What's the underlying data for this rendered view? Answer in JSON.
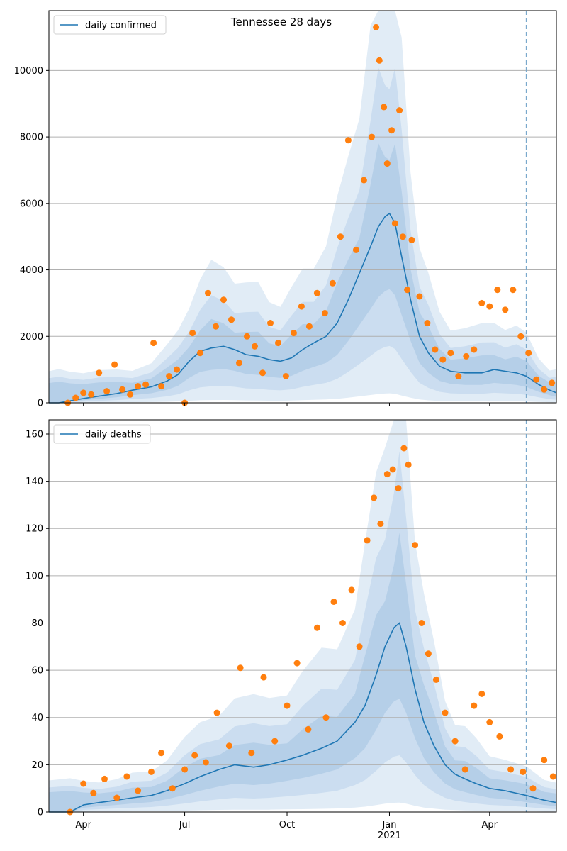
{
  "figure_title": "Tennessee 28 days",
  "colors": {
    "line": "#1f77b4",
    "points": "#ff7f0e",
    "band_outer": "#dce9f5",
    "band_mid": "#c7dbee",
    "band_inner": "#b2cde6",
    "grid": "#b0b0b0",
    "vline": "#7aa9cc"
  },
  "chart_data": [
    {
      "type": "line",
      "legend": [
        "daily confirmed"
      ],
      "legend_position": "top-left",
      "xlim": [
        "2020-03-01",
        "2021-05-31"
      ],
      "ylim": [
        0,
        11800
      ],
      "yticks": [
        0,
        2000,
        4000,
        6000,
        8000,
        10000
      ],
      "grid": "horizontal",
      "forecast_start": "2021-05-04",
      "series": [
        {
          "name": "daily confirmed",
          "kind": "line",
          "points": [
            [
              "2020-03-01",
              0
            ],
            [
              "2020-03-10",
              0
            ],
            [
              "2020-03-20",
              60
            ],
            [
              "2020-04-01",
              130
            ],
            [
              "2020-04-15",
              200
            ],
            [
              "2020-05-01",
              280
            ],
            [
              "2020-05-15",
              380
            ],
            [
              "2020-06-01",
              480
            ],
            [
              "2020-06-15",
              650
            ],
            [
              "2020-06-25",
              850
            ],
            [
              "2020-07-05",
              1250
            ],
            [
              "2020-07-15",
              1550
            ],
            [
              "2020-07-25",
              1650
            ],
            [
              "2020-08-05",
              1700
            ],
            [
              "2020-08-15",
              1600
            ],
            [
              "2020-08-25",
              1450
            ],
            [
              "2020-09-05",
              1400
            ],
            [
              "2020-09-15",
              1300
            ],
            [
              "2020-09-25",
              1250
            ],
            [
              "2020-10-05",
              1350
            ],
            [
              "2020-10-15",
              1600
            ],
            [
              "2020-10-25",
              1800
            ],
            [
              "2020-11-05",
              2000
            ],
            [
              "2020-11-15",
              2400
            ],
            [
              "2020-11-25",
              3100
            ],
            [
              "2020-12-05",
              3900
            ],
            [
              "2020-12-15",
              4700
            ],
            [
              "2020-12-22",
              5300
            ],
            [
              "2020-12-28",
              5600
            ],
            [
              "2021-01-01",
              5700
            ],
            [
              "2021-01-06",
              5400
            ],
            [
              "2021-01-12",
              4400
            ],
            [
              "2021-01-20",
              3100
            ],
            [
              "2021-01-28",
              2000
            ],
            [
              "2021-02-05",
              1500
            ],
            [
              "2021-02-15",
              1100
            ],
            [
              "2021-02-25",
              950
            ],
            [
              "2021-03-10",
              900
            ],
            [
              "2021-03-25",
              900
            ],
            [
              "2021-04-05",
              1000
            ],
            [
              "2021-04-15",
              950
            ],
            [
              "2021-04-25",
              900
            ],
            [
              "2021-05-04",
              800
            ],
            [
              "2021-05-15",
              550
            ],
            [
              "2021-05-25",
              380
            ],
            [
              "2021-05-31",
              300
            ]
          ]
        },
        {
          "name": "",
          "kind": "scatter",
          "points": [
            [
              "2020-03-18",
              0
            ],
            [
              "2020-03-25",
              150
            ],
            [
              "2020-04-01",
              300
            ],
            [
              "2020-04-08",
              250
            ],
            [
              "2020-04-15",
              900
            ],
            [
              "2020-04-22",
              350
            ],
            [
              "2020-04-29",
              1150
            ],
            [
              "2020-05-06",
              400
            ],
            [
              "2020-05-13",
              250
            ],
            [
              "2020-05-20",
              500
            ],
            [
              "2020-05-27",
              550
            ],
            [
              "2020-06-03",
              1800
            ],
            [
              "2020-06-10",
              500
            ],
            [
              "2020-06-17",
              800
            ],
            [
              "2020-06-24",
              1000
            ],
            [
              "2020-07-01",
              0
            ],
            [
              "2020-07-08",
              2100
            ],
            [
              "2020-07-15",
              1500
            ],
            [
              "2020-07-22",
              3300
            ],
            [
              "2020-07-29",
              2300
            ],
            [
              "2020-08-05",
              3100
            ],
            [
              "2020-08-12",
              2500
            ],
            [
              "2020-08-19",
              1200
            ],
            [
              "2020-08-26",
              2000
            ],
            [
              "2020-09-02",
              1700
            ],
            [
              "2020-09-09",
              900
            ],
            [
              "2020-09-16",
              2400
            ],
            [
              "2020-09-23",
              1800
            ],
            [
              "2020-09-30",
              800
            ],
            [
              "2020-10-07",
              2100
            ],
            [
              "2020-10-14",
              2900
            ],
            [
              "2020-10-21",
              2300
            ],
            [
              "2020-10-28",
              3300
            ],
            [
              "2020-11-04",
              2700
            ],
            [
              "2020-11-11",
              3600
            ],
            [
              "2020-11-18",
              5000
            ],
            [
              "2020-11-25",
              7900
            ],
            [
              "2020-12-02",
              4600
            ],
            [
              "2020-12-09",
              6700
            ],
            [
              "2020-12-16",
              8000
            ],
            [
              "2020-12-20",
              11300
            ],
            [
              "2020-12-23",
              10300
            ],
            [
              "2020-12-27",
              8900
            ],
            [
              "2020-12-30",
              7200
            ],
            [
              "2021-01-03",
              8200
            ],
            [
              "2021-01-06",
              5400
            ],
            [
              "2021-01-10",
              8800
            ],
            [
              "2021-01-13",
              5000
            ],
            [
              "2021-01-17",
              3400
            ],
            [
              "2021-01-21",
              4900
            ],
            [
              "2021-01-28",
              3200
            ],
            [
              "2021-02-04",
              2400
            ],
            [
              "2021-02-11",
              1600
            ],
            [
              "2021-02-18",
              1300
            ],
            [
              "2021-02-25",
              1500
            ],
            [
              "2021-03-04",
              800
            ],
            [
              "2021-03-11",
              1400
            ],
            [
              "2021-03-18",
              1600
            ],
            [
              "2021-03-25",
              3000
            ],
            [
              "2021-04-01",
              2900
            ],
            [
              "2021-04-08",
              3400
            ],
            [
              "2021-04-15",
              2800
            ],
            [
              "2021-04-22",
              3400
            ],
            [
              "2021-04-29",
              2000
            ],
            [
              "2021-05-06",
              1500
            ],
            [
              "2021-05-13",
              700
            ],
            [
              "2021-05-20",
              400
            ],
            [
              "2021-05-27",
              600
            ]
          ]
        }
      ]
    },
    {
      "type": "line",
      "legend": [
        "daily deaths"
      ],
      "legend_position": "top-left",
      "xlim": [
        "2020-03-01",
        "2021-05-31"
      ],
      "ylim": [
        0,
        166
      ],
      "yticks": [
        0,
        20,
        40,
        60,
        80,
        100,
        120,
        140,
        160
      ],
      "xticks": [
        "Apr",
        "Jul",
        "Oct",
        "Jan",
        "Apr"
      ],
      "xtick_dates": [
        "2020-04-01",
        "2020-07-01",
        "2020-10-01",
        "2021-01-01",
        "2021-04-01"
      ],
      "xtick_sublabel": "2021",
      "grid": "horizontal",
      "forecast_start": "2021-05-04",
      "series": [
        {
          "name": "daily deaths",
          "kind": "line",
          "points": [
            [
              "2020-03-01",
              0
            ],
            [
              "2020-03-20",
              0
            ],
            [
              "2020-04-01",
              3
            ],
            [
              "2020-04-15",
              4
            ],
            [
              "2020-05-01",
              5
            ],
            [
              "2020-05-15",
              6
            ],
            [
              "2020-06-01",
              7
            ],
            [
              "2020-06-15",
              9
            ],
            [
              "2020-07-01",
              12
            ],
            [
              "2020-07-15",
              15
            ],
            [
              "2020-08-01",
              18
            ],
            [
              "2020-08-15",
              20
            ],
            [
              "2020-09-01",
              19
            ],
            [
              "2020-09-15",
              20
            ],
            [
              "2020-10-01",
              22
            ],
            [
              "2020-10-15",
              24
            ],
            [
              "2020-11-01",
              27
            ],
            [
              "2020-11-15",
              30
            ],
            [
              "2020-12-01",
              38
            ],
            [
              "2020-12-10",
              45
            ],
            [
              "2020-12-20",
              58
            ],
            [
              "2020-12-28",
              70
            ],
            [
              "2021-01-05",
              78
            ],
            [
              "2021-01-10",
              80
            ],
            [
              "2021-01-16",
              70
            ],
            [
              "2021-01-24",
              52
            ],
            [
              "2021-02-01",
              38
            ],
            [
              "2021-02-10",
              28
            ],
            [
              "2021-02-20",
              20
            ],
            [
              "2021-03-01",
              16
            ],
            [
              "2021-03-10",
              14
            ],
            [
              "2021-03-20",
              12
            ],
            [
              "2021-04-01",
              10
            ],
            [
              "2021-04-15",
              9
            ],
            [
              "2021-05-04",
              7
            ],
            [
              "2021-05-20",
              5
            ],
            [
              "2021-05-31",
              4
            ]
          ]
        },
        {
          "name": "",
          "kind": "scatter",
          "points": [
            [
              "2020-03-20",
              0
            ],
            [
              "2020-04-01",
              12
            ],
            [
              "2020-04-10",
              8
            ],
            [
              "2020-04-20",
              14
            ],
            [
              "2020-05-01",
              6
            ],
            [
              "2020-05-10",
              15
            ],
            [
              "2020-05-20",
              9
            ],
            [
              "2020-06-01",
              17
            ],
            [
              "2020-06-10",
              25
            ],
            [
              "2020-06-20",
              10
            ],
            [
              "2020-07-01",
              18
            ],
            [
              "2020-07-10",
              24
            ],
            [
              "2020-07-20",
              21
            ],
            [
              "2020-07-30",
              42
            ],
            [
              "2020-08-10",
              28
            ],
            [
              "2020-08-20",
              61
            ],
            [
              "2020-08-30",
              25
            ],
            [
              "2020-09-10",
              57
            ],
            [
              "2020-09-20",
              30
            ],
            [
              "2020-10-01",
              45
            ],
            [
              "2020-10-10",
              63
            ],
            [
              "2020-10-20",
              35
            ],
            [
              "2020-10-28",
              78
            ],
            [
              "2020-11-05",
              40
            ],
            [
              "2020-11-12",
              89
            ],
            [
              "2020-11-20",
              80
            ],
            [
              "2020-11-28",
              94
            ],
            [
              "2020-12-05",
              70
            ],
            [
              "2020-12-12",
              115
            ],
            [
              "2020-12-18",
              133
            ],
            [
              "2020-12-24",
              122
            ],
            [
              "2020-12-30",
              143
            ],
            [
              "2021-01-04",
              145
            ],
            [
              "2021-01-09",
              137
            ],
            [
              "2021-01-14",
              154
            ],
            [
              "2021-01-18",
              147
            ],
            [
              "2021-01-24",
              113
            ],
            [
              "2021-01-30",
              80
            ],
            [
              "2021-02-05",
              67
            ],
            [
              "2021-02-12",
              56
            ],
            [
              "2021-02-20",
              42
            ],
            [
              "2021-03-01",
              30
            ],
            [
              "2021-03-10",
              18
            ],
            [
              "2021-03-18",
              45
            ],
            [
              "2021-03-25",
              50
            ],
            [
              "2021-04-01",
              38
            ],
            [
              "2021-04-10",
              32
            ],
            [
              "2021-04-20",
              18
            ],
            [
              "2021-05-01",
              17
            ],
            [
              "2021-05-10",
              10
            ],
            [
              "2021-05-20",
              22
            ],
            [
              "2021-05-28",
              15
            ]
          ]
        }
      ]
    }
  ]
}
